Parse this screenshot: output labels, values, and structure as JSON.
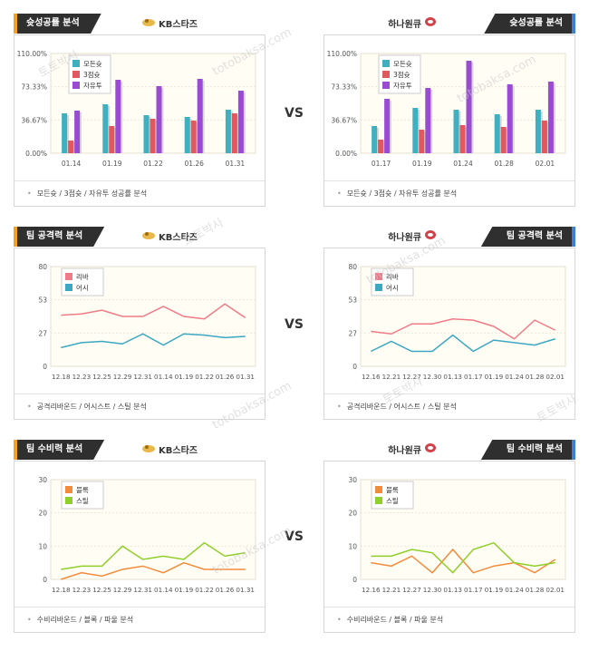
{
  "vs_label": "VS",
  "watermark": [
    "토토박사",
    "totobaksa.com"
  ],
  "teams": {
    "left": "KB스타즈",
    "right": "하나원큐"
  },
  "sections": [
    {
      "title": "슛성공률 분석",
      "footer": "모든슛 / 3점슛 / 자유투 성공률 분석"
    },
    {
      "title": "팀 공격력 분석",
      "footer": "공격리바운드 / 어시스트 / 스틸 분석"
    },
    {
      "title": "팀 수비력 분석",
      "footer": "수비리바운드 / 블록 / 파울 분석"
    }
  ],
  "chart_data": [
    {
      "id": "shoot-left",
      "type": "bar",
      "categories": [
        "01.14",
        "01.19",
        "01.22",
        "01.26",
        "01.31"
      ],
      "yticks": [
        "110.00%",
        "73.33%",
        "36.67%",
        "0.00%"
      ],
      "ylim": [
        0,
        110
      ],
      "series": [
        {
          "name": "모든슛",
          "color": "#3fb0c0",
          "values": [
            44,
            54,
            42,
            40,
            48
          ]
        },
        {
          "name": "3점슛",
          "color": "#e2585f",
          "values": [
            14,
            30,
            38,
            36,
            44
          ]
        },
        {
          "name": "자유투",
          "color": "#9a4ad3",
          "values": [
            47,
            81,
            74,
            82,
            69
          ]
        }
      ]
    },
    {
      "id": "shoot-right",
      "type": "bar",
      "categories": [
        "01.17",
        "01.19",
        "01.24",
        "01.28",
        "02.01"
      ],
      "yticks": [
        "110.00%",
        "73.33%",
        "36.67%",
        "0.00%"
      ],
      "ylim": [
        0,
        110
      ],
      "series": [
        {
          "name": "모든슛",
          "color": "#3fb0c0",
          "values": [
            30,
            50,
            48,
            43,
            48
          ]
        },
        {
          "name": "3점슛",
          "color": "#e2585f",
          "values": [
            15,
            26,
            31,
            29,
            36
          ]
        },
        {
          "name": "자유투",
          "color": "#9a4ad3",
          "values": [
            60,
            72,
            102,
            76,
            79
          ]
        }
      ]
    },
    {
      "id": "attack-left",
      "type": "line",
      "categories": [
        "12.18",
        "12.23",
        "12.25",
        "12.29",
        "12.31",
        "01.14",
        "01.19",
        "01.22",
        "01.26",
        "01.31"
      ],
      "yticks": [
        "80",
        "53",
        "27",
        "0"
      ],
      "ylim": [
        0,
        80
      ],
      "series": [
        {
          "name": "리바",
          "color": "#f07b86",
          "values": [
            41,
            42,
            45,
            40,
            40,
            48,
            40,
            38,
            50,
            39
          ]
        },
        {
          "name": "어시",
          "color": "#3ca7c3",
          "values": [
            15,
            19,
            20,
            18,
            26,
            17,
            26,
            25,
            23,
            24
          ]
        }
      ]
    },
    {
      "id": "attack-right",
      "type": "line",
      "categories": [
        "12.16",
        "12.21",
        "12.27",
        "12.30",
        "01.13",
        "01.17",
        "01.19",
        "01.24",
        "01.28",
        "02.01"
      ],
      "yticks": [
        "80",
        "53",
        "27",
        "0"
      ],
      "ylim": [
        0,
        80
      ],
      "series": [
        {
          "name": "리바",
          "color": "#f07b86",
          "values": [
            28,
            26,
            34,
            34,
            38,
            37,
            32,
            22,
            37,
            29
          ]
        },
        {
          "name": "어시",
          "color": "#3ca7c3",
          "values": [
            12,
            20,
            12,
            12,
            25,
            12,
            21,
            19,
            17,
            22
          ]
        }
      ]
    },
    {
      "id": "defense-left",
      "type": "line",
      "categories": [
        "12.18",
        "12.23",
        "12.25",
        "12.29",
        "12.31",
        "01.14",
        "01.19",
        "01.22",
        "01.26",
        "01.31"
      ],
      "yticks": [
        "30",
        "20",
        "10",
        "0"
      ],
      "ylim": [
        0,
        30
      ],
      "series": [
        {
          "name": "블록",
          "color": "#f28c3c",
          "values": [
            0,
            2,
            1,
            3,
            4,
            2,
            5,
            3,
            3,
            3
          ]
        },
        {
          "name": "스틸",
          "color": "#8fcf2a",
          "values": [
            3,
            4,
            4,
            10,
            6,
            7,
            6,
            11,
            7,
            8
          ]
        }
      ]
    },
    {
      "id": "defense-right",
      "type": "line",
      "categories": [
        "12.16",
        "12.21",
        "12.27",
        "12.30",
        "01.13",
        "01.17",
        "01.19",
        "01.24",
        "01.28",
        "02.01"
      ],
      "yticks": [
        "30",
        "20",
        "10",
        "0"
      ],
      "ylim": [
        0,
        30
      ],
      "series": [
        {
          "name": "블록",
          "color": "#f28c3c",
          "values": [
            5,
            4,
            7,
            2,
            9,
            2,
            4,
            5,
            2,
            6
          ]
        },
        {
          "name": "스틸",
          "color": "#8fcf2a",
          "values": [
            7,
            7,
            9,
            8,
            2,
            9,
            11,
            5,
            4,
            5
          ]
        }
      ]
    }
  ]
}
